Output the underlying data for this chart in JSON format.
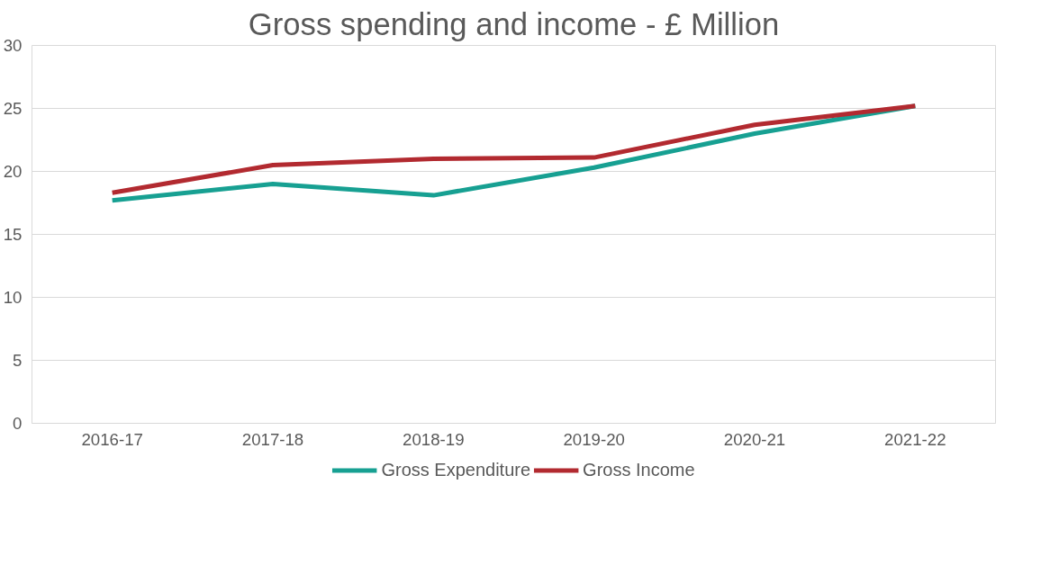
{
  "chart_data": {
    "type": "line",
    "title": "Gross spending and income - £ Million",
    "categories": [
      "2016-17",
      "2017-18",
      "2018-19",
      "2019-20",
      "2020-21",
      "2021-22"
    ],
    "series": [
      {
        "name": "Gross Expenditure",
        "color": "#17a092",
        "values": [
          17.7,
          19.0,
          18.1,
          20.3,
          23.0,
          25.2
        ]
      },
      {
        "name": "Gross Income",
        "color": "#b22a30",
        "values": [
          18.3,
          20.5,
          21.0,
          21.1,
          23.7,
          25.2
        ]
      }
    ],
    "ylim": [
      0,
      30
    ],
    "yticks": [
      0,
      5,
      10,
      15,
      20,
      25,
      30
    ],
    "grid": "y",
    "legend": "bottom",
    "marker": "none",
    "line_style": "solid"
  }
}
